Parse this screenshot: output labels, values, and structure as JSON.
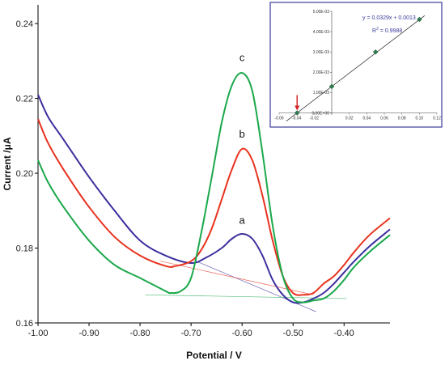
{
  "chart_data": [
    {
      "type": "line",
      "xlabel": "Potential / V",
      "ylabel": "Current /μA",
      "xlim": [
        -1.0,
        -0.31
      ],
      "ylim": [
        0.16,
        0.245
      ],
      "x_ticks": [
        "-1.00",
        "-0.90",
        "-0.80",
        "-0.70",
        "-0.60",
        "-0.50",
        "-0.40"
      ],
      "y_ticks": [
        "0.16",
        "0.18",
        "0.20",
        "0.22",
        "0.24"
      ],
      "grid": false,
      "series": [
        {
          "name": "a",
          "color": "#3b2f9e",
          "x": [
            -1.0,
            -0.98,
            -0.95,
            -0.9,
            -0.85,
            -0.8,
            -0.75,
            -0.7,
            -0.67,
            -0.64,
            -0.62,
            -0.6,
            -0.58,
            -0.56,
            -0.54,
            -0.52,
            -0.5,
            -0.48,
            -0.46,
            -0.44,
            -0.42,
            -0.4,
            -0.38,
            -0.35,
            -0.31
          ],
          "y": [
            0.221,
            0.215,
            0.209,
            0.199,
            0.19,
            0.182,
            0.178,
            0.176,
            0.1775,
            0.18,
            0.1825,
            0.1838,
            0.1825,
            0.178,
            0.1715,
            0.1675,
            0.1655,
            0.1655,
            0.1665,
            0.168,
            0.1705,
            0.1735,
            0.1765,
            0.1805,
            0.185
          ]
        },
        {
          "name": "b",
          "color": "#e8321e",
          "x": [
            -1.0,
            -0.98,
            -0.95,
            -0.9,
            -0.85,
            -0.8,
            -0.75,
            -0.73,
            -0.7,
            -0.68,
            -0.66,
            -0.64,
            -0.62,
            -0.6,
            -0.58,
            -0.56,
            -0.54,
            -0.52,
            -0.5,
            -0.48,
            -0.46,
            -0.44,
            -0.42,
            -0.4,
            -0.38,
            -0.35,
            -0.31
          ],
          "y": [
            0.2145,
            0.208,
            0.201,
            0.191,
            0.183,
            0.178,
            0.1752,
            0.1752,
            0.1765,
            0.1795,
            0.185,
            0.193,
            0.201,
            0.2065,
            0.2035,
            0.194,
            0.182,
            0.1725,
            0.168,
            0.1675,
            0.168,
            0.1705,
            0.1725,
            0.1755,
            0.179,
            0.1835,
            0.188
          ]
        },
        {
          "name": "c",
          "color": "#1aa84a",
          "x": [
            -1.0,
            -0.98,
            -0.95,
            -0.9,
            -0.85,
            -0.8,
            -0.75,
            -0.74,
            -0.72,
            -0.7,
            -0.68,
            -0.66,
            -0.64,
            -0.62,
            -0.6,
            -0.58,
            -0.56,
            -0.54,
            -0.52,
            -0.5,
            -0.48,
            -0.46,
            -0.44,
            -0.42,
            -0.4,
            -0.38,
            -0.35,
            -0.31
          ],
          "y": [
            0.2035,
            0.1975,
            0.191,
            0.182,
            0.1755,
            0.172,
            0.1685,
            0.168,
            0.1685,
            0.172,
            0.184,
            0.1985,
            0.2135,
            0.2235,
            0.2268,
            0.222,
            0.2055,
            0.186,
            0.1725,
            0.1665,
            0.1655,
            0.166,
            0.1665,
            0.1685,
            0.1715,
            0.175,
            0.179,
            0.1835
          ]
        }
      ],
      "baselines": [
        {
          "series": "a",
          "x": [
            -0.69,
            -0.455
          ],
          "y": [
            0.1765,
            0.163
          ]
        },
        {
          "series": "b",
          "x": [
            -0.76,
            -0.46
          ],
          "y": [
            0.1765,
            0.1675
          ]
        },
        {
          "series": "c",
          "x": [
            -0.79,
            -0.395
          ],
          "y": [
            0.1675,
            0.1665
          ]
        }
      ],
      "labels": [
        "a",
        "b",
        "c"
      ],
      "label_points": [
        {
          "text": "a",
          "x": -0.6,
          "y": 0.1865
        },
        {
          "text": "b",
          "x": -0.6,
          "y": 0.2095
        },
        {
          "text": "c",
          "x": -0.6,
          "y": 0.23
        }
      ]
    },
    {
      "type": "scatter",
      "xlim": [
        -0.06,
        0.12
      ],
      "ylim": [
        -0.0001,
        0.005
      ],
      "x_ticks": [
        "-0.06",
        "-0.04",
        "-0.02",
        "0.02",
        "0.04",
        "0.06",
        "0.08",
        "0.10",
        "0.12"
      ],
      "x_tick_values": [
        -0.06,
        -0.04,
        -0.02,
        0.02,
        0.04,
        0.06,
        0.08,
        0.1,
        0.12
      ],
      "y_ticks": [
        "0.00E+00",
        "1.00E-03",
        "2.00E-03",
        "3.00E-03",
        "4.00E-03",
        "5.00E-03"
      ],
      "y_tick_values": [
        0,
        0.001,
        0.002,
        0.003,
        0.004,
        0.005
      ],
      "x": [
        -0.0395,
        0.0,
        0.05,
        0.1
      ],
      "y": [
        0.0,
        0.0013,
        0.003,
        0.0046
      ],
      "fit": {
        "slope": 0.0329,
        "intercept": 0.0013
      },
      "equation": "y = 0.0329x + 0.0013",
      "r2_prefix": "R",
      "r2_sup": "2",
      "r2_value": " = 0.9988",
      "marker_color": "#2e7d4f",
      "arrow_color": "#d42020",
      "arrow_x": -0.0395
    }
  ]
}
